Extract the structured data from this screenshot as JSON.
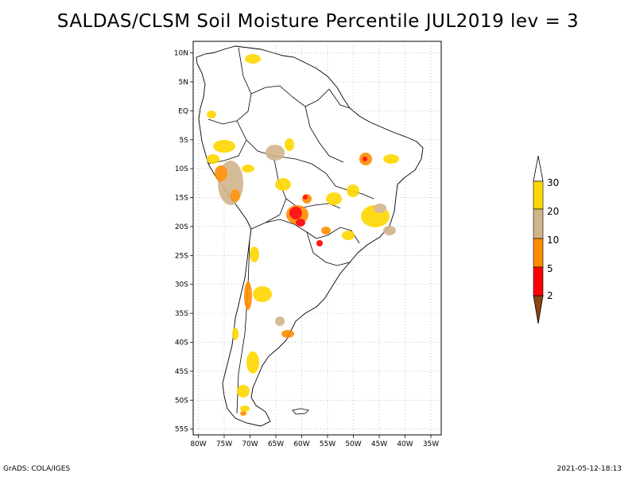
{
  "title": "SALDAS/CLSM Soil Moisture Percentile JUL2019 lev = 3",
  "footer": {
    "left": "GrADS: COLA/IGES",
    "right": "2021-05-12-18:13"
  },
  "map": {
    "lat_labels": [
      "10N",
      "5N",
      "EQ",
      "5S",
      "10S",
      "15S",
      "20S",
      "25S",
      "30S",
      "35S",
      "40S",
      "45S",
      "50S",
      "55S"
    ],
    "lat_values": [
      10,
      5,
      0,
      -5,
      -10,
      -15,
      -20,
      -25,
      -30,
      -35,
      -40,
      -45,
      -50,
      -55
    ],
    "lon_labels": [
      "80W",
      "75W",
      "70W",
      "65W",
      "60W",
      "55W",
      "50W",
      "45W",
      "40W",
      "35W"
    ],
    "lon_values": [
      -80,
      -75,
      -70,
      -65,
      -60,
      -55,
      -50,
      -45,
      -40,
      -35
    ],
    "lat_range": [
      -56,
      12
    ],
    "lon_range": [
      -81,
      -33
    ],
    "grid": true
  },
  "legend": {
    "labels": [
      "30",
      "20",
      "10",
      "5",
      "2"
    ],
    "colors": {
      "c30": "#ffd700",
      "c20": "#d2b48c",
      "c10": "#ff8c00",
      "c5": "#ff0000",
      "c2": "#8b4513"
    }
  }
}
